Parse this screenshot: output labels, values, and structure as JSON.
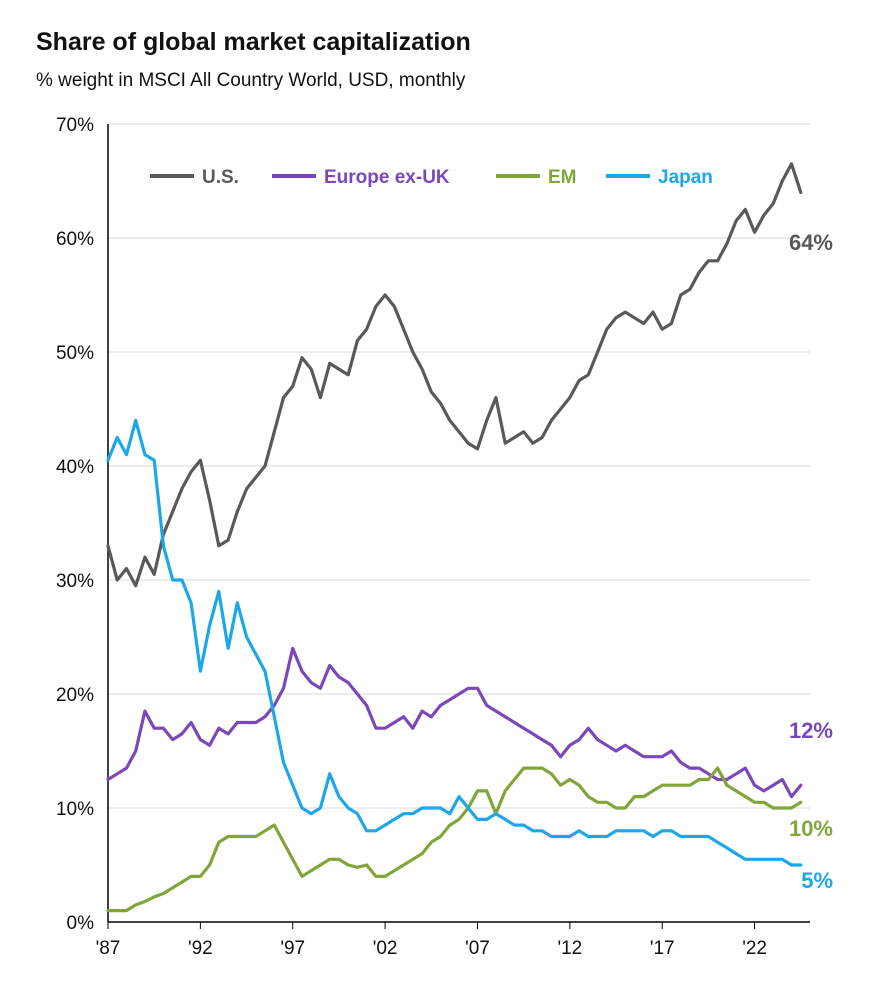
{
  "title": "Share of global market capitalization",
  "subtitle": "% weight in MSCI All Country World, USD, monthly",
  "chart_data": {
    "type": "line",
    "ylim": [
      0,
      70
    ],
    "xlim": [
      1987,
      2025
    ],
    "yticks": [
      "0%",
      "10%",
      "20%",
      "30%",
      "40%",
      "50%",
      "60%",
      "70%"
    ],
    "ytick_values": [
      0,
      10,
      20,
      30,
      40,
      50,
      60,
      70
    ],
    "xticks": [
      "'87",
      "'92",
      "'97",
      "'02",
      "'07",
      "'12",
      "'17",
      "'22"
    ],
    "xtick_values": [
      1987,
      1992,
      1997,
      2002,
      2007,
      2012,
      2017,
      2022
    ],
    "grid": "horizontal",
    "legend": "top",
    "series": [
      {
        "name": "U.S.",
        "color": "#595959",
        "end_label": "64%",
        "x": [
          1987,
          1987.5,
          1988,
          1988.5,
          1989,
          1989.5,
          1990,
          1990.5,
          1991,
          1991.5,
          1992,
          1992.5,
          1993,
          1993.5,
          1994,
          1994.5,
          1995,
          1995.5,
          1996,
          1996.5,
          1997,
          1997.5,
          1998,
          1998.5,
          1999,
          1999.5,
          2000,
          2000.5,
          2001,
          2001.5,
          2002,
          2002.5,
          2003,
          2003.5,
          2004,
          2004.5,
          2005,
          2005.5,
          2006,
          2006.5,
          2007,
          2007.5,
          2008,
          2008.5,
          2009,
          2009.5,
          2010,
          2010.5,
          2011,
          2011.5,
          2012,
          2012.5,
          2013,
          2013.5,
          2014,
          2014.5,
          2015,
          2015.5,
          2016,
          2016.5,
          2017,
          2017.5,
          2018,
          2018.5,
          2019,
          2019.5,
          2020,
          2020.5,
          2021,
          2021.5,
          2022,
          2022.5,
          2023,
          2023.5,
          2024,
          2024.5
        ],
        "values": [
          33,
          30,
          31,
          29.5,
          32,
          30.5,
          34,
          36,
          38,
          39.5,
          40.5,
          37,
          33,
          33.5,
          36,
          38,
          39,
          40,
          43,
          46,
          47,
          49.5,
          48.5,
          46,
          49,
          48.5,
          48,
          51,
          52,
          54,
          55,
          54,
          52,
          50,
          48.5,
          46.5,
          45.5,
          44,
          43,
          42,
          41.5,
          44,
          46,
          42,
          42.5,
          43,
          42,
          42.5,
          44,
          45,
          46,
          47.5,
          48,
          50,
          52,
          53,
          53.5,
          53,
          52.5,
          53.5,
          52,
          52.5,
          55,
          55.5,
          57,
          58,
          58,
          59.5,
          61.5,
          62.5,
          60.5,
          62,
          63,
          65,
          66.5,
          64
        ]
      },
      {
        "name": "Europe ex-UK",
        "color": "#7a48b8",
        "end_label": "12%",
        "x": [
          1987,
          1987.5,
          1988,
          1988.5,
          1989,
          1989.5,
          1990,
          1990.5,
          1991,
          1991.5,
          1992,
          1992.5,
          1993,
          1993.5,
          1994,
          1994.5,
          1995,
          1995.5,
          1996,
          1996.5,
          1997,
          1997.5,
          1998,
          1998.5,
          1999,
          1999.5,
          2000,
          2000.5,
          2001,
          2001.5,
          2002,
          2002.5,
          2003,
          2003.5,
          2004,
          2004.5,
          2005,
          2005.5,
          2006,
          2006.5,
          2007,
          2007.5,
          2008,
          2008.5,
          2009,
          2009.5,
          2010,
          2010.5,
          2011,
          2011.5,
          2012,
          2012.5,
          2013,
          2013.5,
          2014,
          2014.5,
          2015,
          2015.5,
          2016,
          2016.5,
          2017,
          2017.5,
          2018,
          2018.5,
          2019,
          2019.5,
          2020,
          2020.5,
          2021,
          2021.5,
          2022,
          2022.5,
          2023,
          2023.5,
          2024,
          2024.5
        ],
        "values": [
          12.5,
          13,
          13.5,
          15,
          18.5,
          17,
          17,
          16,
          16.5,
          17.5,
          16,
          15.5,
          17,
          16.5,
          17.5,
          17.5,
          17.5,
          18,
          19,
          20.5,
          24,
          22,
          21,
          20.5,
          22.5,
          21.5,
          21,
          20,
          19,
          17,
          17,
          17.5,
          18,
          17,
          18.5,
          18,
          19,
          19.5,
          20,
          20.5,
          20.5,
          19,
          18.5,
          18,
          17.5,
          17,
          16.5,
          16,
          15.5,
          14.5,
          15.5,
          16,
          17,
          16,
          15.5,
          15,
          15.5,
          15,
          14.5,
          14.5,
          14.5,
          15,
          14,
          13.5,
          13.5,
          13,
          12.5,
          12.5,
          13,
          13.5,
          12,
          11.5,
          12,
          12.5,
          11,
          12
        ]
      },
      {
        "name": "EM",
        "color": "#82a53a",
        "end_label": "10%",
        "x": [
          1987,
          1987.5,
          1988,
          1988.5,
          1989,
          1989.5,
          1990,
          1990.5,
          1991,
          1991.5,
          1992,
          1992.5,
          1993,
          1993.5,
          1994,
          1994.5,
          1995,
          1995.5,
          1996,
          1996.5,
          1997,
          1997.5,
          1998,
          1998.5,
          1999,
          1999.5,
          2000,
          2000.5,
          2001,
          2001.5,
          2002,
          2002.5,
          2003,
          2003.5,
          2004,
          2004.5,
          2005,
          2005.5,
          2006,
          2006.5,
          2007,
          2007.5,
          2008,
          2008.5,
          2009,
          2009.5,
          2010,
          2010.5,
          2011,
          2011.5,
          2012,
          2012.5,
          2013,
          2013.5,
          2014,
          2014.5,
          2015,
          2015.5,
          2016,
          2016.5,
          2017,
          2017.5,
          2018,
          2018.5,
          2019,
          2019.5,
          2020,
          2020.5,
          2021,
          2021.5,
          2022,
          2022.5,
          2023,
          2023.5,
          2024,
          2024.5
        ],
        "values": [
          1,
          1,
          1,
          1.5,
          1.8,
          2.2,
          2.5,
          3,
          3.5,
          4,
          4,
          5,
          7,
          7.5,
          7.5,
          7.5,
          7.5,
          8,
          8.5,
          7,
          5.5,
          4,
          4.5,
          5,
          5.5,
          5.5,
          5,
          4.8,
          5,
          4,
          4,
          4.5,
          5,
          5.5,
          6,
          7,
          7.5,
          8.5,
          9,
          10,
          11.5,
          11.5,
          9.5,
          11.5,
          12.5,
          13.5,
          13.5,
          13.5,
          13,
          12,
          12.5,
          12,
          11,
          10.5,
          10.5,
          10,
          10,
          11,
          11,
          11.5,
          12,
          12,
          12,
          12,
          12.5,
          12.5,
          13.5,
          12,
          11.5,
          11,
          10.5,
          10.5,
          10,
          10,
          10,
          10.5
        ]
      },
      {
        "name": "Japan",
        "color": "#1ea7e8",
        "end_label": "5%",
        "x": [
          1987,
          1987.5,
          1988,
          1988.5,
          1989,
          1989.5,
          1990,
          1990.5,
          1991,
          1991.5,
          1992,
          1992.5,
          1993,
          1993.5,
          1994,
          1994.5,
          1995,
          1995.5,
          1996,
          1996.5,
          1997,
          1997.5,
          1998,
          1998.5,
          1999,
          1999.5,
          2000,
          2000.5,
          2001,
          2001.5,
          2002,
          2002.5,
          2003,
          2003.5,
          2004,
          2004.5,
          2005,
          2005.5,
          2006,
          2006.5,
          2007,
          2007.5,
          2008,
          2008.5,
          2009,
          2009.5,
          2010,
          2010.5,
          2011,
          2011.5,
          2012,
          2012.5,
          2013,
          2013.5,
          2014,
          2014.5,
          2015,
          2015.5,
          2016,
          2016.5,
          2017,
          2017.5,
          2018,
          2018.5,
          2019,
          2019.5,
          2020,
          2020.5,
          2021,
          2021.5,
          2022,
          2022.5,
          2023,
          2023.5,
          2024,
          2024.5
        ],
        "values": [
          40.5,
          42.5,
          41,
          44,
          41,
          40.5,
          33,
          30,
          30,
          28,
          22,
          26,
          29,
          24,
          28,
          25,
          23.5,
          22,
          18,
          14,
          12,
          10,
          9.5,
          10,
          13,
          11,
          10,
          9.5,
          8,
          8,
          8.5,
          9,
          9.5,
          9.5,
          10,
          10,
          10,
          9.5,
          11,
          10,
          9,
          9,
          9.5,
          9,
          8.5,
          8.5,
          8,
          8,
          7.5,
          7.5,
          7.5,
          8,
          7.5,
          7.5,
          7.5,
          8,
          8,
          8,
          8,
          7.5,
          8,
          8,
          7.5,
          7.5,
          7.5,
          7.5,
          7,
          6.5,
          6,
          5.5,
          5.5,
          5.5,
          5.5,
          5.5,
          5,
          5
        ]
      }
    ]
  }
}
